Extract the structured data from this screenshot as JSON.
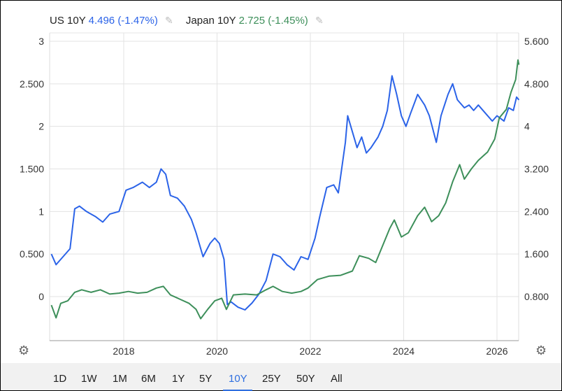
{
  "legend": {
    "us": {
      "name": "US 10Y",
      "value": "4.496 (-1.47%)",
      "color": "#2b63e8"
    },
    "jp": {
      "name": "Japan 10Y",
      "value": "2.725 (-1.45%)",
      "color": "#3d8f5a"
    },
    "edit_icon": "pencil-icon"
  },
  "settings_icon": "gear-icon",
  "ranges": [
    "1D",
    "1W",
    "1M",
    "6M",
    "1Y",
    "5Y",
    "10Y",
    "25Y",
    "50Y",
    "All"
  ],
  "active_range": "10Y",
  "chart_data": {
    "type": "line",
    "x_ticks": [
      "2018",
      "2020",
      "2022",
      "2024",
      "2026"
    ],
    "y_left": {
      "ticks": [
        "0",
        "0.500",
        "1",
        "1.500",
        "2",
        "2.500",
        "3"
      ],
      "range": [
        -0.15,
        3.05
      ]
    },
    "y_right": {
      "ticks": [
        "0.800",
        "1.600",
        "2.400",
        "3.200",
        "4",
        "4.800",
        "5.600"
      ],
      "range": [
        0.2,
        5.65
      ]
    },
    "grid": true,
    "series": [
      {
        "name": "US 10Y",
        "axis": "right",
        "color": "#2b63e8",
        "points": [
          [
            2016.45,
            1.6
          ],
          [
            2016.55,
            1.4
          ],
          [
            2016.7,
            1.55
          ],
          [
            2016.85,
            1.7
          ],
          [
            2016.95,
            2.45
          ],
          [
            2017.05,
            2.5
          ],
          [
            2017.2,
            2.4
          ],
          [
            2017.4,
            2.3
          ],
          [
            2017.55,
            2.2
          ],
          [
            2017.7,
            2.35
          ],
          [
            2017.9,
            2.4
          ],
          [
            2018.05,
            2.8
          ],
          [
            2018.2,
            2.85
          ],
          [
            2018.4,
            2.95
          ],
          [
            2018.55,
            2.85
          ],
          [
            2018.7,
            2.95
          ],
          [
            2018.8,
            3.2
          ],
          [
            2018.9,
            3.1
          ],
          [
            2019.0,
            2.7
          ],
          [
            2019.15,
            2.65
          ],
          [
            2019.3,
            2.5
          ],
          [
            2019.45,
            2.25
          ],
          [
            2019.55,
            2.0
          ],
          [
            2019.7,
            1.55
          ],
          [
            2019.85,
            1.8
          ],
          [
            2019.95,
            1.9
          ],
          [
            2020.05,
            1.8
          ],
          [
            2020.15,
            1.5
          ],
          [
            2020.22,
            0.65
          ],
          [
            2020.3,
            0.7
          ],
          [
            2020.45,
            0.6
          ],
          [
            2020.6,
            0.55
          ],
          [
            2020.75,
            0.68
          ],
          [
            2020.9,
            0.85
          ],
          [
            2021.05,
            1.1
          ],
          [
            2021.2,
            1.6
          ],
          [
            2021.35,
            1.55
          ],
          [
            2021.5,
            1.4
          ],
          [
            2021.65,
            1.3
          ],
          [
            2021.8,
            1.55
          ],
          [
            2021.95,
            1.5
          ],
          [
            2022.1,
            1.9
          ],
          [
            2022.2,
            2.3
          ],
          [
            2022.35,
            2.85
          ],
          [
            2022.5,
            2.9
          ],
          [
            2022.6,
            2.75
          ],
          [
            2022.75,
            3.7
          ],
          [
            2022.8,
            4.2
          ],
          [
            2022.9,
            3.9
          ],
          [
            2023.0,
            3.6
          ],
          [
            2023.1,
            3.8
          ],
          [
            2023.2,
            3.5
          ],
          [
            2023.3,
            3.6
          ],
          [
            2023.45,
            3.8
          ],
          [
            2023.55,
            4.0
          ],
          [
            2023.65,
            4.3
          ],
          [
            2023.75,
            4.95
          ],
          [
            2023.85,
            4.6
          ],
          [
            2023.95,
            4.2
          ],
          [
            2024.05,
            4.0
          ],
          [
            2024.15,
            4.25
          ],
          [
            2024.3,
            4.6
          ],
          [
            2024.45,
            4.4
          ],
          [
            2024.55,
            4.2
          ],
          [
            2024.7,
            3.7
          ],
          [
            2024.8,
            4.2
          ],
          [
            2024.95,
            4.6
          ],
          [
            2025.05,
            4.8
          ],
          [
            2025.15,
            4.5
          ],
          [
            2025.3,
            4.35
          ],
          [
            2025.4,
            4.4
          ],
          [
            2025.5,
            4.3
          ],
          [
            2025.6,
            4.4
          ],
          [
            2025.75,
            4.25
          ],
          [
            2025.9,
            4.1
          ],
          [
            2026.0,
            4.2
          ],
          [
            2026.15,
            4.1
          ],
          [
            2026.25,
            4.35
          ],
          [
            2026.35,
            4.3
          ],
          [
            2026.42,
            4.55
          ],
          [
            2026.47,
            4.496
          ]
        ]
      },
      {
        "name": "Japan 10Y",
        "axis": "left",
        "color": "#3d8f5a",
        "points": [
          [
            2016.45,
            -0.1
          ],
          [
            2016.55,
            -0.25
          ],
          [
            2016.65,
            -0.08
          ],
          [
            2016.8,
            -0.05
          ],
          [
            2016.95,
            0.05
          ],
          [
            2017.1,
            0.08
          ],
          [
            2017.3,
            0.05
          ],
          [
            2017.5,
            0.08
          ],
          [
            2017.7,
            0.03
          ],
          [
            2017.9,
            0.04
          ],
          [
            2018.1,
            0.06
          ],
          [
            2018.3,
            0.04
          ],
          [
            2018.5,
            0.05
          ],
          [
            2018.7,
            0.1
          ],
          [
            2018.85,
            0.12
          ],
          [
            2019.0,
            0.02
          ],
          [
            2019.2,
            -0.03
          ],
          [
            2019.4,
            -0.08
          ],
          [
            2019.55,
            -0.15
          ],
          [
            2019.65,
            -0.26
          ],
          [
            2019.8,
            -0.15
          ],
          [
            2019.95,
            -0.05
          ],
          [
            2020.1,
            -0.02
          ],
          [
            2020.2,
            -0.15
          ],
          [
            2020.35,
            0.02
          ],
          [
            2020.6,
            0.03
          ],
          [
            2020.85,
            0.02
          ],
          [
            2021.05,
            0.08
          ],
          [
            2021.2,
            0.12
          ],
          [
            2021.4,
            0.06
          ],
          [
            2021.6,
            0.04
          ],
          [
            2021.8,
            0.06
          ],
          [
            2021.95,
            0.1
          ],
          [
            2022.15,
            0.2
          ],
          [
            2022.4,
            0.24
          ],
          [
            2022.65,
            0.25
          ],
          [
            2022.9,
            0.3
          ],
          [
            2023.05,
            0.48
          ],
          [
            2023.25,
            0.45
          ],
          [
            2023.4,
            0.4
          ],
          [
            2023.55,
            0.6
          ],
          [
            2023.7,
            0.8
          ],
          [
            2023.8,
            0.9
          ],
          [
            2023.95,
            0.7
          ],
          [
            2024.1,
            0.75
          ],
          [
            2024.3,
            0.95
          ],
          [
            2024.45,
            1.05
          ],
          [
            2024.6,
            0.88
          ],
          [
            2024.75,
            0.95
          ],
          [
            2024.9,
            1.1
          ],
          [
            2025.05,
            1.35
          ],
          [
            2025.2,
            1.55
          ],
          [
            2025.3,
            1.38
          ],
          [
            2025.45,
            1.5
          ],
          [
            2025.6,
            1.6
          ],
          [
            2025.8,
            1.7
          ],
          [
            2025.95,
            1.85
          ],
          [
            2026.05,
            2.1
          ],
          [
            2026.2,
            2.2
          ],
          [
            2026.3,
            2.4
          ],
          [
            2026.4,
            2.55
          ],
          [
            2026.45,
            2.78
          ],
          [
            2026.47,
            2.725
          ]
        ]
      }
    ]
  }
}
